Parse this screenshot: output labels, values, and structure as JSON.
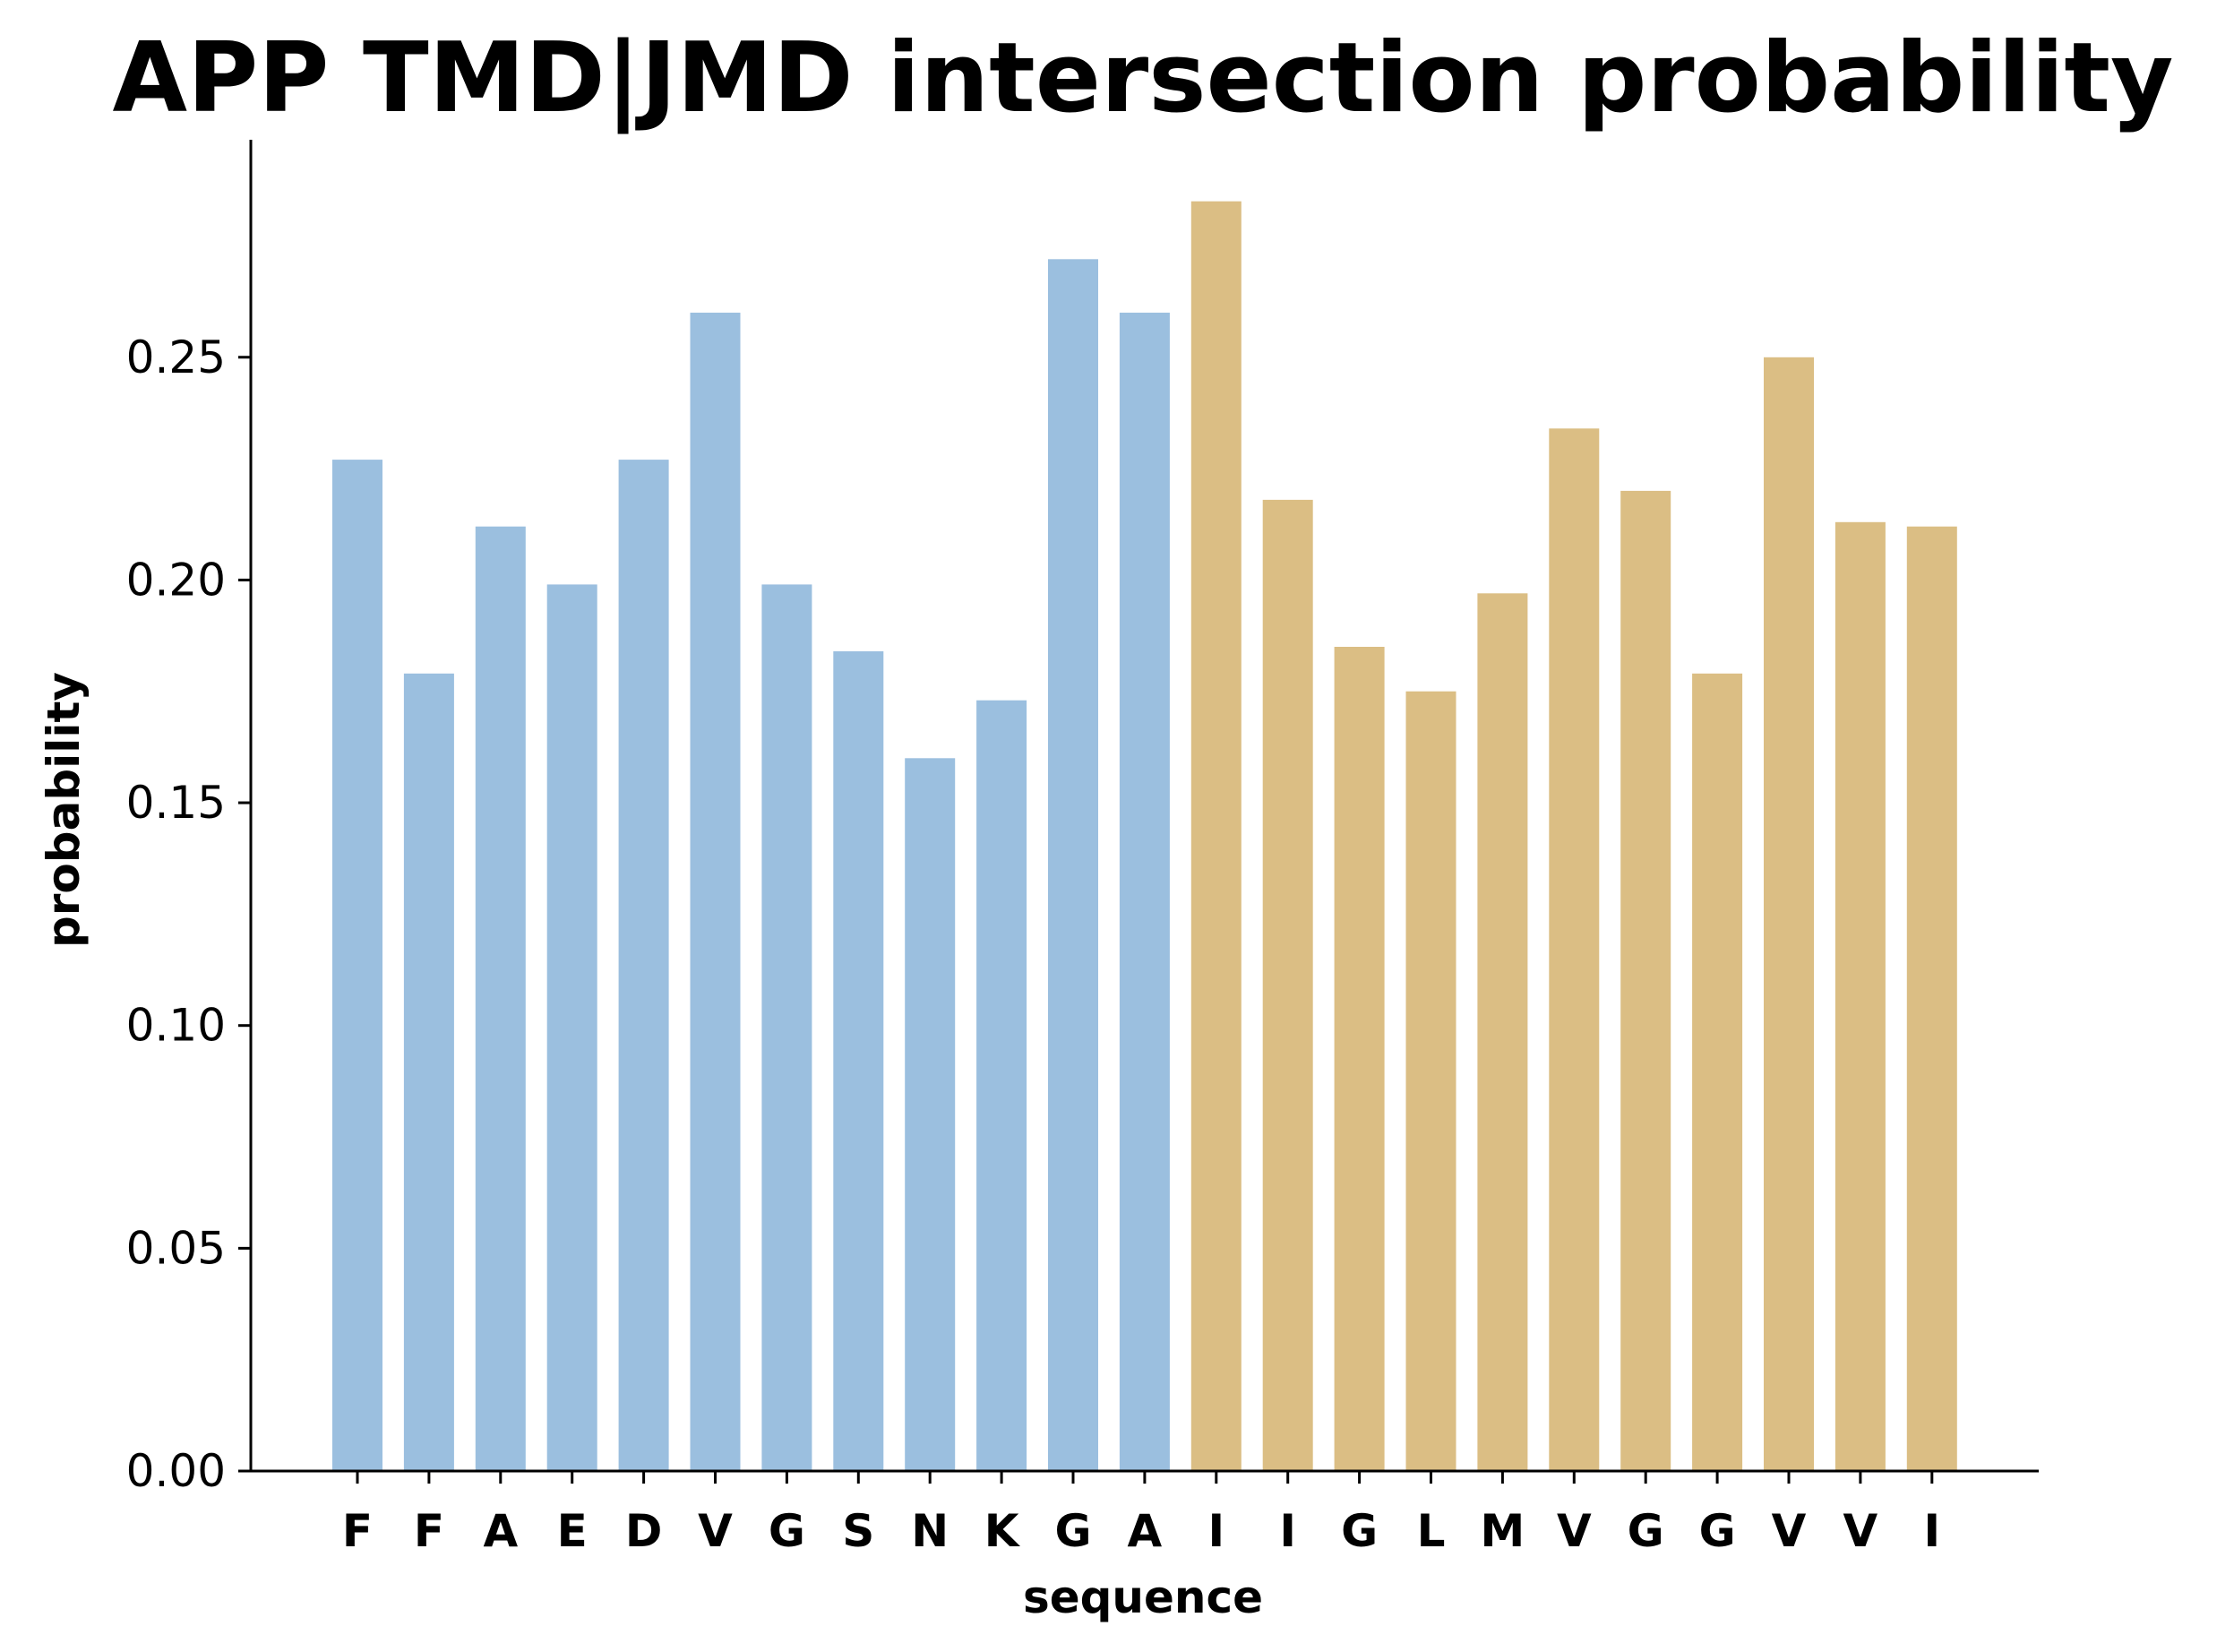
{
  "chart_data": {
    "type": "bar",
    "title": "APP TMD|JMD intersection probability",
    "xlabel": "sequence",
    "ylabel": "probability",
    "ylim": [
      0,
      0.3
    ],
    "yticks": [
      "0.00",
      "0.05",
      "0.10",
      "0.15",
      "0.20",
      "0.25"
    ],
    "grid": false,
    "categories": [
      "F",
      "F",
      "A",
      "E",
      "D",
      "V",
      "G",
      "S",
      "N",
      "K",
      "G",
      "A",
      "I",
      "I",
      "G",
      "L",
      "M",
      "V",
      "G",
      "G",
      "V",
      "V",
      "I"
    ],
    "values": [
      0.227,
      0.179,
      0.212,
      0.199,
      0.227,
      0.26,
      0.199,
      0.184,
      0.16,
      0.173,
      0.272,
      0.26,
      0.285,
      0.218,
      0.185,
      0.175,
      0.197,
      0.234,
      0.22,
      0.179,
      0.25,
      0.213,
      0.212
    ],
    "colors": {
      "jmd": "#9bbfdf",
      "tmd": "#dbbe84"
    },
    "bar_groups": [
      "jmd",
      "jmd",
      "jmd",
      "jmd",
      "jmd",
      "jmd",
      "jmd",
      "jmd",
      "jmd",
      "jmd",
      "jmd",
      "jmd",
      "tmd",
      "tmd",
      "tmd",
      "tmd",
      "tmd",
      "tmd",
      "tmd",
      "tmd",
      "tmd",
      "tmd",
      "tmd"
    ]
  }
}
